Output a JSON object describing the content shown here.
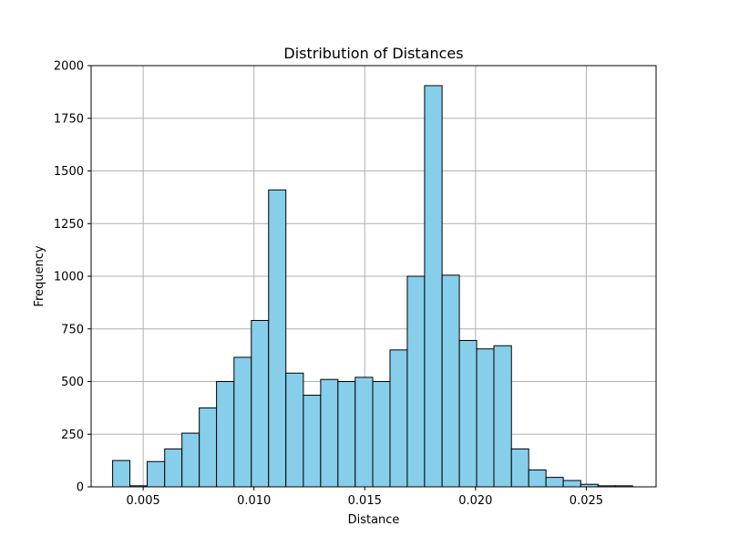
{
  "chart_data": {
    "type": "bar",
    "title": "Distribution of Distances",
    "xlabel": "Distance",
    "ylabel": "Frequency",
    "xlim": [
      0.00265,
      0.02815
    ],
    "ylim": [
      0,
      2000
    ],
    "grid": true,
    "bar_color": "#87ceeb",
    "edge_color": "#000000",
    "grid_color": "#b0b0b0",
    "x_ticks": [
      {
        "value": 0.005,
        "label": "0.005"
      },
      {
        "value": 0.01,
        "label": "0.010"
      },
      {
        "value": 0.015,
        "label": "0.015"
      },
      {
        "value": 0.02,
        "label": "0.020"
      },
      {
        "value": 0.025,
        "label": "0.025"
      }
    ],
    "y_ticks": [
      {
        "value": 0,
        "label": "0"
      },
      {
        "value": 250,
        "label": "250"
      },
      {
        "value": 500,
        "label": "500"
      },
      {
        "value": 750,
        "label": "750"
      },
      {
        "value": 1000,
        "label": "1000"
      },
      {
        "value": 1250,
        "label": "1250"
      },
      {
        "value": 1500,
        "label": "1500"
      },
      {
        "value": 1750,
        "label": "1750"
      },
      {
        "value": 2000,
        "label": "2000"
      }
    ],
    "bins": [
      {
        "start": 0.00362,
        "end": 0.0044,
        "count": 125
      },
      {
        "start": 0.0044,
        "end": 0.00518,
        "count": 5
      },
      {
        "start": 0.00518,
        "end": 0.00597,
        "count": 120
      },
      {
        "start": 0.00597,
        "end": 0.00675,
        "count": 180
      },
      {
        "start": 0.00675,
        "end": 0.00753,
        "count": 255
      },
      {
        "start": 0.00753,
        "end": 0.00831,
        "count": 375
      },
      {
        "start": 0.00831,
        "end": 0.0091,
        "count": 500
      },
      {
        "start": 0.0091,
        "end": 0.00988,
        "count": 615
      },
      {
        "start": 0.00988,
        "end": 0.01066,
        "count": 790
      },
      {
        "start": 0.01066,
        "end": 0.01144,
        "count": 1410
      },
      {
        "start": 0.01144,
        "end": 0.01223,
        "count": 540
      },
      {
        "start": 0.01223,
        "end": 0.01301,
        "count": 435
      },
      {
        "start": 0.01301,
        "end": 0.01379,
        "count": 510
      },
      {
        "start": 0.01379,
        "end": 0.01457,
        "count": 500
      },
      {
        "start": 0.01457,
        "end": 0.01536,
        "count": 520
      },
      {
        "start": 0.01536,
        "end": 0.01614,
        "count": 500
      },
      {
        "start": 0.01614,
        "end": 0.01692,
        "count": 650
      },
      {
        "start": 0.01692,
        "end": 0.0177,
        "count": 1000
      },
      {
        "start": 0.0177,
        "end": 0.01849,
        "count": 1905
      },
      {
        "start": 0.01849,
        "end": 0.01927,
        "count": 1005
      },
      {
        "start": 0.01927,
        "end": 0.02005,
        "count": 695
      },
      {
        "start": 0.02005,
        "end": 0.02083,
        "count": 655
      },
      {
        "start": 0.02083,
        "end": 0.02162,
        "count": 670
      },
      {
        "start": 0.02162,
        "end": 0.0224,
        "count": 180
      },
      {
        "start": 0.0224,
        "end": 0.02318,
        "count": 80
      },
      {
        "start": 0.02318,
        "end": 0.02396,
        "count": 45
      },
      {
        "start": 0.02396,
        "end": 0.02475,
        "count": 30
      },
      {
        "start": 0.02475,
        "end": 0.02553,
        "count": 12
      },
      {
        "start": 0.02553,
        "end": 0.02631,
        "count": 5
      },
      {
        "start": 0.02631,
        "end": 0.02709,
        "count": 5
      }
    ]
  }
}
